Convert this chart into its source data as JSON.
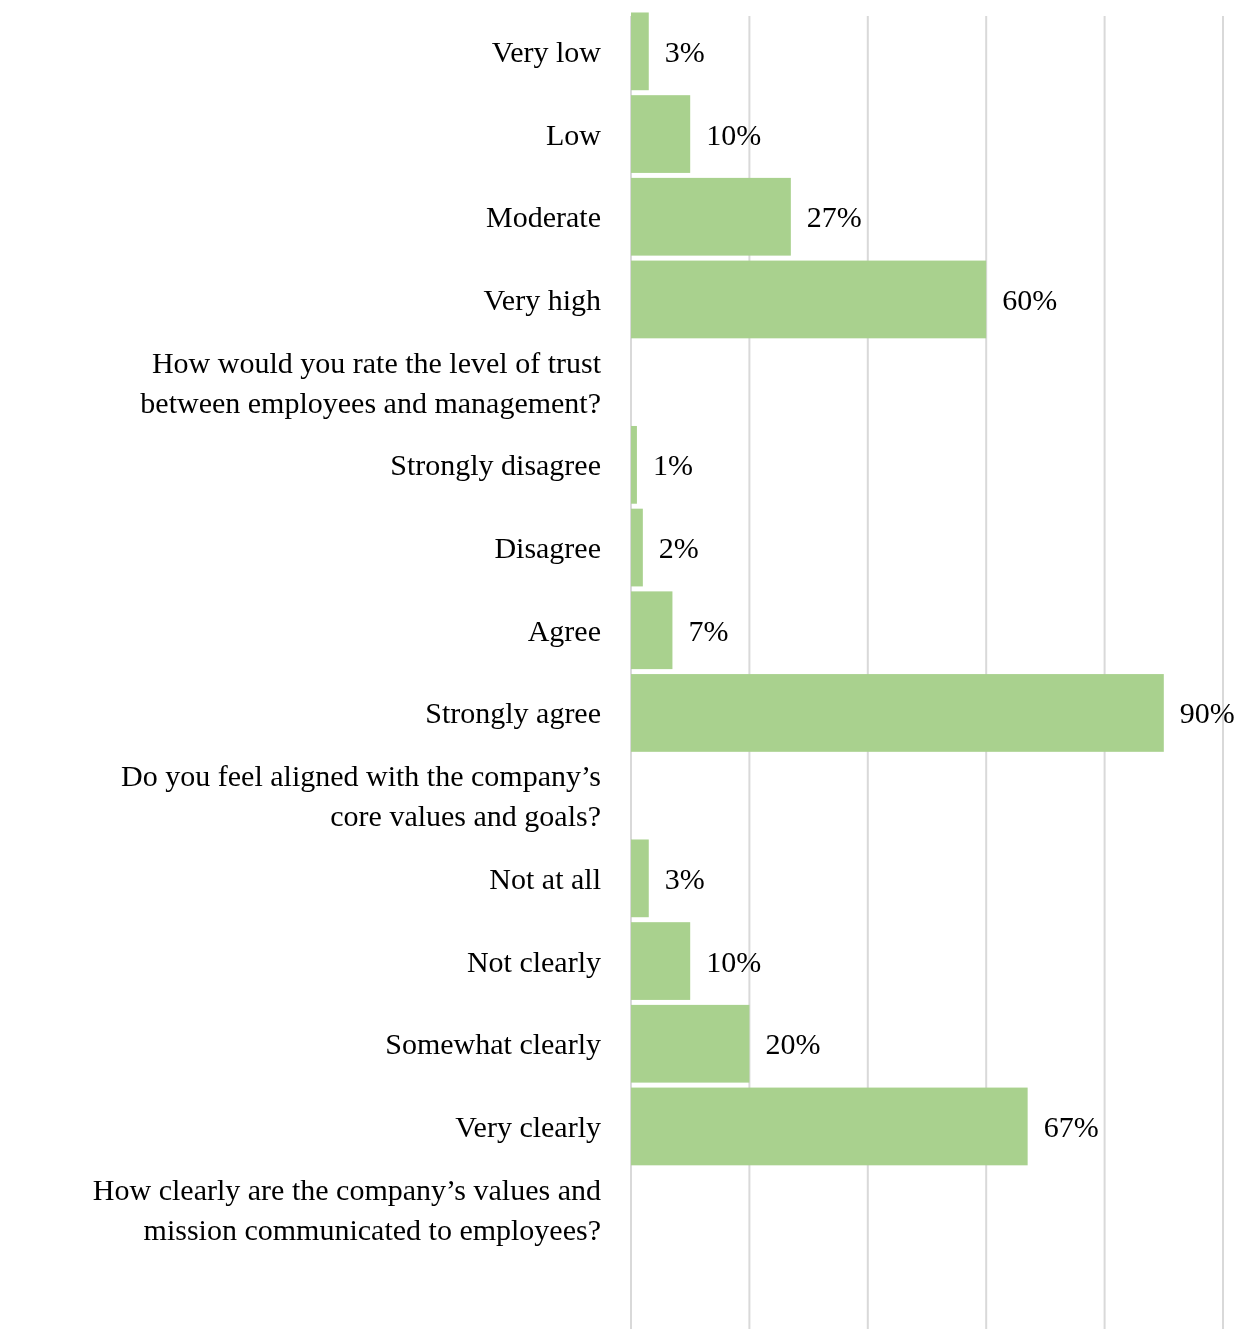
{
  "chart_data": {
    "type": "bar",
    "orientation": "horizontal",
    "categories": [
      "Very low",
      "Low",
      "Moderate",
      "Very high",
      "How would you rate the level of trust between employees and management?",
      "Strongly disagree",
      "Disagree",
      "Agree",
      "Strongly agree",
      "Do you feel aligned with the company’s core values and goals?",
      "Not at all",
      "Not clearly",
      "Somewhat clearly",
      "Very clearly",
      "How clearly are the company’s values and mission communicated to employees?"
    ],
    "values": [
      3,
      10,
      27,
      60,
      null,
      1,
      2,
      7,
      90,
      null,
      3,
      10,
      20,
      67,
      null
    ],
    "value_labels": [
      "3%",
      "10%",
      "27%",
      "60%",
      null,
      "1%",
      "2%",
      "7%",
      "90%",
      null,
      "3%",
      "10%",
      "20%",
      "67%",
      null
    ],
    "color": "#a9d18e",
    "xlim": [
      0,
      100
    ],
    "xticks": [
      {
        "value": 0,
        "label": null
      },
      {
        "value": 20,
        "label": null
      },
      {
        "value": 40,
        "label": null
      },
      {
        "value": 60,
        "label": null
      },
      {
        "value": 80,
        "label": null
      },
      {
        "value": 100,
        "label": null
      }
    ],
    "grid": "x",
    "tick_labels": "y"
  }
}
